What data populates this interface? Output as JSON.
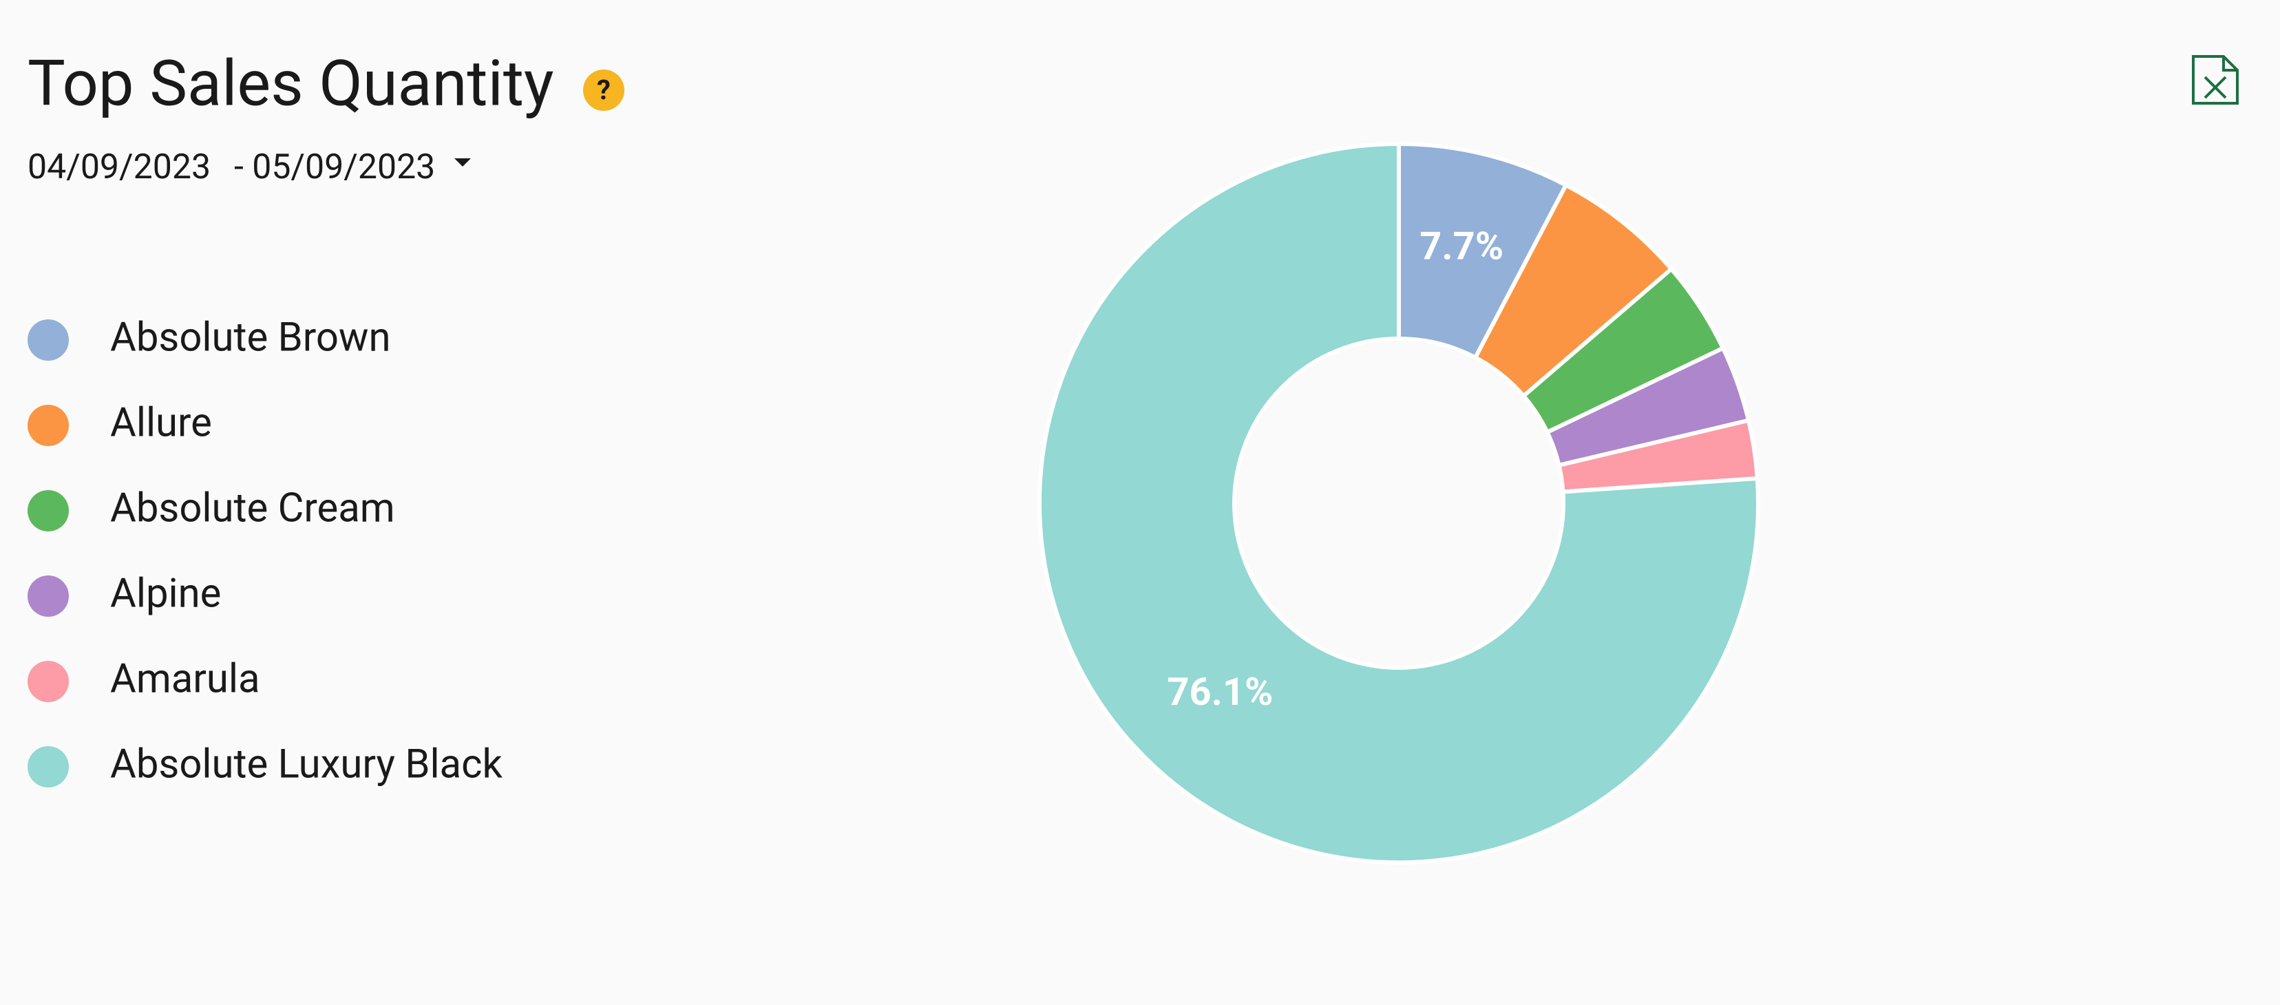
{
  "chart_data": {
    "type": "pie",
    "title": "Top Sales Quantity",
    "help_icon": "?",
    "date_start": "04/09/2023",
    "date_end": "- 05/09/2023",
    "categories": [
      "Absolute Brown",
      "Allure",
      "Absolute Cream",
      "Alpine",
      "Amarula",
      "Absolute Luxury Black"
    ],
    "values": [
      7.7,
      6.0,
      4.2,
      3.4,
      2.6,
      76.1
    ],
    "value_labels": [
      "7.7%",
      null,
      null,
      null,
      null,
      "76.1%"
    ],
    "colors": [
      "#92b0d8",
      "#fb9543",
      "#5cb85c",
      "#ae86cb",
      "#fd9ba7",
      "#93d8d2"
    ]
  }
}
